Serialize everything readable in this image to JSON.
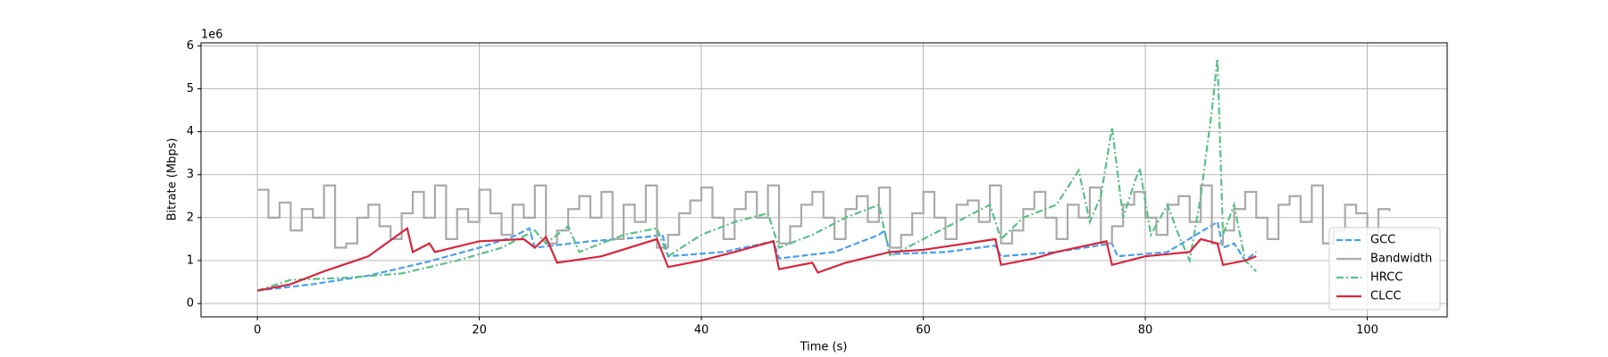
{
  "chart_data": {
    "type": "line",
    "xlabel": "Time (s)",
    "ylabel": "Bitrate (Mbps)",
    "y_offset_label": "1e6",
    "xlim": [
      -5.08,
      107.2
    ],
    "ylim": [
      -0.31,
      6.07
    ],
    "xticks": [
      0,
      20,
      40,
      60,
      80,
      100
    ],
    "yticks": [
      0,
      1,
      2,
      3,
      4,
      5,
      6
    ],
    "grid": true,
    "legend": "lower right",
    "series": [
      {
        "name": "GCC",
        "color": "#4a9ff0",
        "linestyle": "--",
        "step": false,
        "x": [
          0,
          5,
          10,
          15,
          20,
          23,
          24.5,
          25,
          30,
          35,
          36.5,
          37,
          42,
          46.5,
          47,
          52,
          56,
          56.5,
          57,
          62,
          66.5,
          67,
          72,
          77,
          77.5,
          82,
          86.5,
          87,
          88,
          89,
          90
        ],
        "values": [
          0.3,
          0.45,
          0.65,
          0.95,
          1.3,
          1.55,
          1.75,
          1.3,
          1.45,
          1.55,
          1.6,
          1.1,
          1.2,
          1.45,
          1.05,
          1.2,
          1.6,
          1.7,
          1.15,
          1.2,
          1.35,
          1.1,
          1.2,
          1.4,
          1.1,
          1.2,
          1.9,
          1.3,
          1.4,
          1.0,
          1.2
        ]
      },
      {
        "name": "Bandwidth",
        "color": "#aaaaaa",
        "linestyle": "-",
        "step": true,
        "x": [
          0,
          1,
          2,
          3,
          4,
          5,
          6,
          7,
          8,
          9,
          10,
          11,
          12,
          13,
          14,
          15,
          16,
          17,
          18,
          19,
          20,
          21,
          22,
          23,
          24,
          25,
          26,
          27,
          28,
          29,
          30,
          31,
          32,
          33,
          34,
          35,
          36,
          37,
          38,
          39,
          40,
          41,
          42,
          43,
          44,
          45,
          46,
          47,
          48,
          49,
          50,
          51,
          52,
          53,
          54,
          55,
          56,
          57,
          58,
          59,
          60,
          61,
          62,
          63,
          64,
          65,
          66,
          67,
          68,
          69,
          70,
          71,
          72,
          73,
          74,
          75,
          76,
          77,
          78,
          79,
          80,
          81,
          82,
          83,
          84,
          85,
          86,
          87,
          88,
          89,
          90,
          91,
          92,
          93,
          94,
          95,
          96,
          97,
          98,
          99,
          100,
          101,
          102
        ],
        "values": [
          2.65,
          2.0,
          2.35,
          1.7,
          2.2,
          2.0,
          2.75,
          1.3,
          1.4,
          2.0,
          2.3,
          1.8,
          1.5,
          2.1,
          2.6,
          2.0,
          2.75,
          1.5,
          2.2,
          1.9,
          2.65,
          2.1,
          1.6,
          2.3,
          2.0,
          2.75,
          1.4,
          1.7,
          2.2,
          2.5,
          2.0,
          2.6,
          1.5,
          2.3,
          1.9,
          2.75,
          1.3,
          1.6,
          2.1,
          2.4,
          2.7,
          2.0,
          1.5,
          2.2,
          2.6,
          2.0,
          2.75,
          1.4,
          1.8,
          2.3,
          2.6,
          2.0,
          1.5,
          2.2,
          2.5,
          1.9,
          2.7,
          1.3,
          1.6,
          2.1,
          2.6,
          2.0,
          1.5,
          2.3,
          2.4,
          1.9,
          2.75,
          1.4,
          1.7,
          2.2,
          2.6,
          2.0,
          1.5,
          2.3,
          2.0,
          2.7,
          1.4,
          1.8,
          2.3,
          2.6,
          2.0,
          1.6,
          2.3,
          2.5,
          1.9,
          2.75,
          1.4,
          1.7,
          2.2,
          2.6,
          2.0,
          1.5,
          2.3,
          2.5,
          1.9,
          2.75,
          1.4,
          1.7,
          2.3,
          2.1,
          1.6,
          2.2,
          2.15
        ]
      },
      {
        "name": "HRCC",
        "color": "#5cbf87",
        "linestyle": "-.",
        "step": false,
        "x": [
          0,
          3,
          8,
          13,
          18,
          22,
          25,
          26,
          28,
          29,
          33,
          36,
          37,
          40,
          43,
          46,
          47,
          50,
          53,
          56,
          57,
          60,
          63,
          66,
          67,
          69,
          72,
          74,
          75,
          76,
          77,
          78,
          79,
          79.5,
          80.5,
          82,
          83,
          84,
          85,
          86,
          86.5,
          87,
          88,
          89,
          90
        ],
        "values": [
          0.3,
          0.55,
          0.6,
          0.7,
          1.0,
          1.3,
          1.7,
          1.4,
          1.8,
          1.2,
          1.6,
          1.75,
          1.1,
          1.6,
          1.9,
          2.1,
          1.3,
          1.6,
          2.0,
          2.3,
          1.1,
          1.5,
          1.9,
          2.3,
          1.5,
          2.0,
          2.3,
          3.1,
          1.9,
          2.5,
          4.1,
          2.0,
          2.8,
          3.15,
          1.6,
          2.3,
          1.6,
          1.0,
          2.5,
          4.5,
          5.7,
          1.6,
          2.3,
          1.0,
          0.75
        ]
      },
      {
        "name": "CLCC",
        "color": "#d7263d",
        "linestyle": "-",
        "step": false,
        "x": [
          0,
          3,
          6,
          10,
          13.5,
          14,
          15.5,
          16,
          20,
          24,
          25,
          26,
          27,
          31,
          36,
          37,
          40,
          43,
          46.5,
          47,
          50,
          50.5,
          53,
          57,
          60,
          66.5,
          67,
          70,
          72,
          76.5,
          77,
          80,
          84,
          85,
          86.5,
          87,
          89,
          90
        ],
        "values": [
          0.3,
          0.45,
          0.75,
          1.1,
          1.75,
          1.2,
          1.4,
          1.2,
          1.45,
          1.5,
          1.3,
          1.55,
          0.95,
          1.1,
          1.5,
          0.85,
          1.0,
          1.2,
          1.45,
          0.8,
          0.95,
          0.72,
          0.95,
          1.2,
          1.25,
          1.5,
          0.9,
          1.05,
          1.2,
          1.45,
          0.9,
          1.1,
          1.2,
          1.5,
          1.4,
          0.9,
          1.0,
          1.1
        ]
      }
    ]
  }
}
